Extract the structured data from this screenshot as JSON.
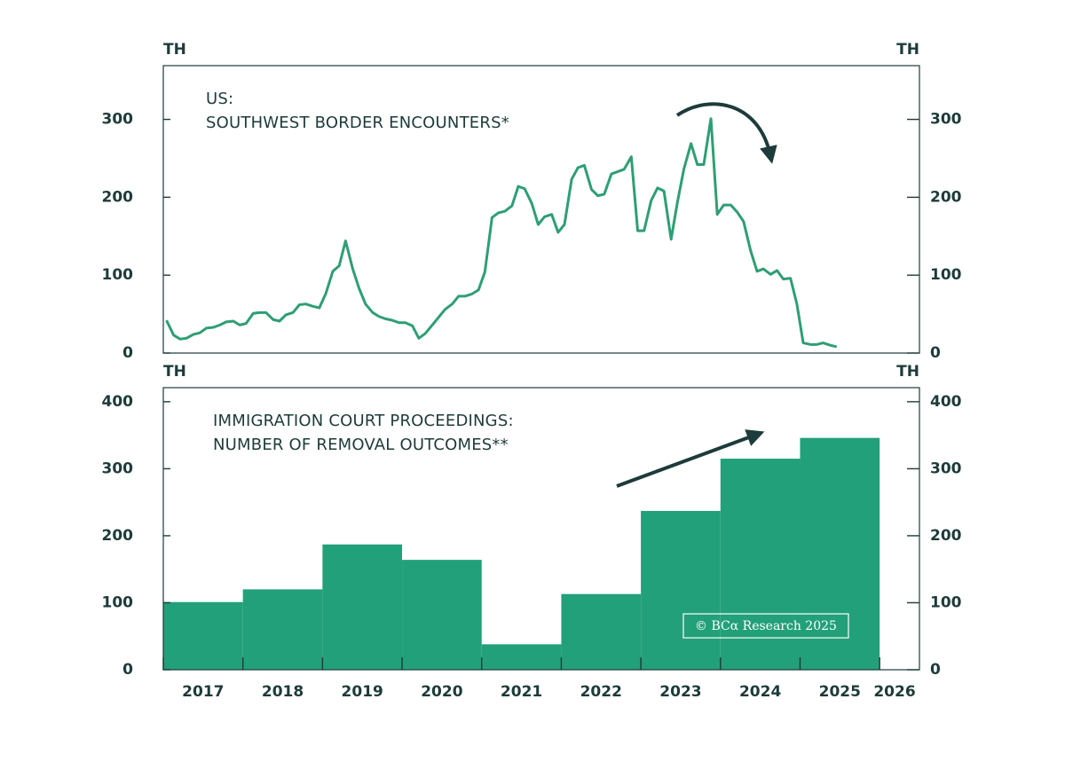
{
  "chart_data": [
    {
      "type": "line",
      "title": [
        "US:",
        "SOUTHWEST BORDER ENCOUNTERS*"
      ],
      "ylabel": "TH",
      "y2label": "TH",
      "color": "#2f9e74",
      "x": [
        2017.04,
        2017.13,
        2017.21,
        2017.29,
        2017.38,
        2017.46,
        2017.54,
        2017.63,
        2017.71,
        2017.79,
        2017.88,
        2017.96,
        2018.04,
        2018.13,
        2018.21,
        2018.29,
        2018.38,
        2018.46,
        2018.54,
        2018.63,
        2018.71,
        2018.79,
        2018.88,
        2018.96,
        2019.04,
        2019.13,
        2019.21,
        2019.29,
        2019.38,
        2019.46,
        2019.54,
        2019.63,
        2019.71,
        2019.79,
        2019.88,
        2019.96,
        2020.04,
        2020.13,
        2020.21,
        2020.29,
        2020.38,
        2020.46,
        2020.54,
        2020.63,
        2020.71,
        2020.79,
        2020.88,
        2020.96,
        2021.04,
        2021.13,
        2021.21,
        2021.29,
        2021.38,
        2021.46,
        2021.54,
        2021.63,
        2021.71,
        2021.79,
        2021.88,
        2021.96,
        2022.04,
        2022.13,
        2022.21,
        2022.29,
        2022.38,
        2022.46,
        2022.54,
        2022.63,
        2022.71,
        2022.79,
        2022.88,
        2022.96,
        2023.04,
        2023.13,
        2023.21,
        2023.29,
        2023.38,
        2023.46,
        2023.54,
        2023.63,
        2023.71,
        2023.79,
        2023.88,
        2023.96,
        2024.04,
        2024.13,
        2024.21,
        2024.29,
        2024.38,
        2024.46,
        2024.54,
        2024.63,
        2024.71,
        2024.79,
        2024.88,
        2024.96,
        2025.04,
        2025.13,
        2025.21,
        2025.29,
        2025.38,
        2025.46
      ],
      "values": [
        42,
        23,
        18,
        19,
        24,
        26,
        32,
        33,
        36,
        40,
        41,
        36,
        38,
        51,
        52,
        52,
        43,
        41,
        49,
        52,
        62,
        63,
        60,
        58,
        76,
        105,
        112,
        144,
        108,
        83,
        63,
        52,
        47,
        44,
        42,
        39,
        39,
        35,
        19,
        25,
        36,
        46,
        56,
        63,
        73,
        73,
        76,
        81,
        104,
        174,
        180,
        182,
        189,
        214,
        211,
        192,
        165,
        175,
        178,
        155,
        165,
        223,
        238,
        241,
        210,
        202,
        204,
        230,
        233,
        236,
        252,
        157,
        157,
        196,
        212,
        208,
        146,
        194,
        236,
        269,
        242,
        242,
        301,
        178,
        190,
        190,
        181,
        169,
        131,
        105,
        108,
        101,
        106,
        95,
        96,
        63,
        13,
        11,
        11,
        13,
        10,
        8
      ],
      "xlim": [
        2017,
        2026.5
      ],
      "ylim": [
        0,
        369
      ],
      "yticks": [
        0,
        100,
        200,
        300
      ],
      "y2lim": [
        0,
        369
      ],
      "y2ticks": [
        0,
        100,
        200,
        300
      ]
    },
    {
      "type": "histogram",
      "title": [
        "IMMIGRATION COURT PROCEEDINGS:",
        "NUMBER OF REMOVAL OUTCOMES**"
      ],
      "ylabel": "TH",
      "y2label": "TH",
      "color": "#22a079",
      "bins": [
        2017,
        2018,
        2019,
        2020,
        2021,
        2022,
        2023,
        2024,
        2025,
        2026
      ],
      "values": [
        101,
        120,
        187,
        164,
        38,
        113,
        237,
        315,
        346
      ],
      "xlim": [
        2017,
        2026.5
      ],
      "xticks": [
        2017,
        2018,
        2019,
        2020,
        2021,
        2022,
        2023,
        2024,
        2025,
        2026
      ],
      "ylim": [
        0,
        421
      ],
      "yticks": [
        0,
        100,
        200,
        300,
        400
      ],
      "y2lim": [
        0,
        421
      ],
      "y2ticks": [
        0,
        100,
        200,
        300,
        400
      ],
      "watermark": "© BCα Research 2025"
    }
  ]
}
